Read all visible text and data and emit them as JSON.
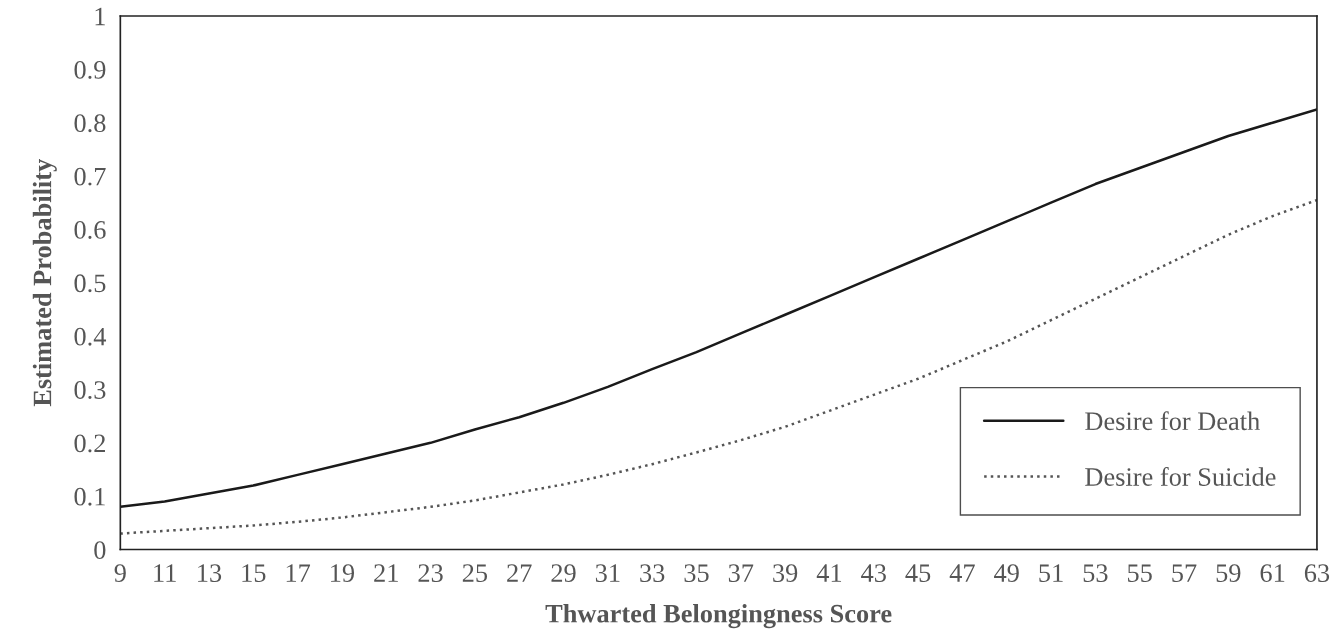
{
  "chart_data": {
    "type": "line",
    "xlabel": "Thwarted Belongingness Score",
    "ylabel": "Estimated Probability",
    "x": [
      9,
      11,
      13,
      15,
      17,
      19,
      21,
      23,
      25,
      27,
      29,
      31,
      33,
      35,
      37,
      39,
      41,
      43,
      45,
      47,
      49,
      51,
      53,
      55,
      57,
      59,
      61,
      63
    ],
    "series": [
      {
        "name": "Desire for Death",
        "color": "#1a1a1a",
        "line_style": "solid",
        "values": [
          0.08,
          0.09,
          0.105,
          0.12,
          0.14,
          0.16,
          0.18,
          0.2,
          0.225,
          0.248,
          0.275,
          0.305,
          0.338,
          0.37,
          0.405,
          0.44,
          0.475,
          0.51,
          0.545,
          0.58,
          0.615,
          0.65,
          0.685,
          0.715,
          0.745,
          0.775,
          0.8,
          0.825
        ]
      },
      {
        "name": "Desire for Suicide",
        "color": "#555555",
        "line_style": "dotted",
        "values": [
          0.03,
          0.035,
          0.04,
          0.045,
          0.052,
          0.06,
          0.07,
          0.08,
          0.092,
          0.107,
          0.122,
          0.14,
          0.16,
          0.182,
          0.205,
          0.23,
          0.26,
          0.29,
          0.32,
          0.355,
          0.39,
          0.43,
          0.47,
          0.51,
          0.55,
          0.59,
          0.625,
          0.655
        ]
      }
    ],
    "xlim": [
      9,
      63
    ],
    "xticks": [
      9,
      11,
      13,
      15,
      17,
      19,
      21,
      23,
      25,
      27,
      29,
      31,
      33,
      35,
      37,
      39,
      41,
      43,
      45,
      47,
      49,
      51,
      53,
      55,
      57,
      59,
      61,
      63
    ],
    "ylim": [
      0,
      1
    ],
    "yticks": [
      0,
      0.1,
      0.2,
      0.3,
      0.4,
      0.5,
      0.6,
      0.7,
      0.8,
      0.9,
      1
    ],
    "grid": false,
    "legend": "bottom right",
    "marker": "none"
  }
}
